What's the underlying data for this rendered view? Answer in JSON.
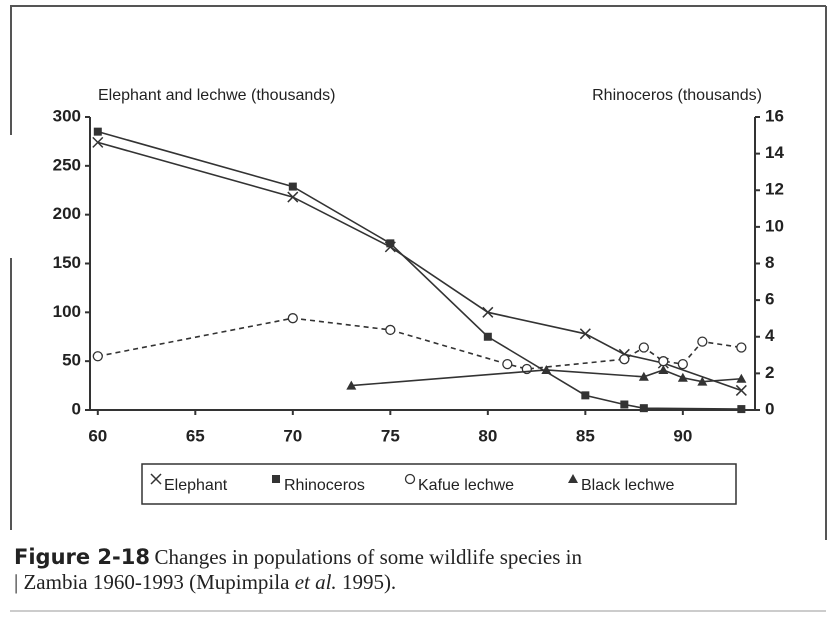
{
  "chart_data": {
    "type": "line",
    "y_label": "Elephant and lechwe (thousands)",
    "y2_label": "Rhinoceros (thousands)",
    "xlim": [
      59.6,
      93.7
    ],
    "xticks": [
      60,
      65,
      70,
      75,
      80,
      85,
      90
    ],
    "ylim": [
      0,
      300
    ],
    "yticks": [
      0,
      50,
      100,
      150,
      200,
      250,
      300
    ],
    "y2lim": [
      0,
      16
    ],
    "y2ticks": [
      0,
      2,
      4,
      6,
      8,
      10,
      12,
      14,
      16
    ],
    "grid": false,
    "legend": "bottom",
    "series": [
      {
        "name": "Elephant",
        "color": "#333333",
        "marker": "x",
        "dashed": false,
        "x": [
          60,
          70,
          75,
          80,
          85,
          87,
          89,
          93
        ],
        "values": [
          274,
          218,
          167,
          100,
          78,
          57,
          48,
          20
        ]
      },
      {
        "name": "Rhinoceros",
        "color": "#333333",
        "marker": "square",
        "dashed": false,
        "axis": "y2",
        "x": [
          60,
          70,
          75,
          80,
          85,
          87,
          88,
          93
        ],
        "values": [
          15.2,
          12.2,
          9.1,
          4.0,
          0.8,
          0.3,
          0.1,
          0.05
        ]
      },
      {
        "name": "Kafue lechwe",
        "color": "#333333",
        "marker": "circle",
        "dashed": true,
        "x": [
          60,
          70,
          75,
          81,
          82,
          87,
          88,
          89,
          90,
          91,
          93
        ],
        "values": [
          55,
          94,
          82,
          47,
          42,
          52,
          64,
          50,
          47,
          70,
          64
        ]
      },
      {
        "name": "Black lechwe",
        "color": "#333333",
        "marker": "triangle",
        "dashed": false,
        "x": [
          73,
          83,
          88,
          89,
          90,
          91,
          93
        ],
        "values": [
          25,
          41,
          34,
          41,
          33,
          29,
          32
        ]
      }
    ]
  },
  "caption": {
    "label": "Figure 2-18",
    "text1": "Changes in populations of some wildlife species in",
    "text2": "Zambia 1960-1993 (Mupimpila ",
    "italic": "et al.",
    "text3": " 1995)."
  }
}
